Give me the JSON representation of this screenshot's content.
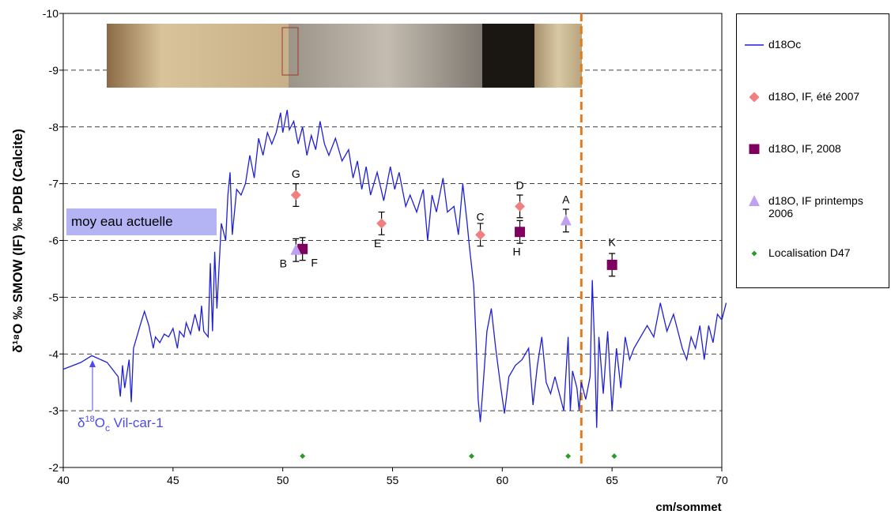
{
  "chart_data": {
    "type": "line",
    "x_label": "cm/sommet",
    "y_label": "δ¹⁸O ‰ SMOW  (IF) ‰ PDB  (Calcite)",
    "xlim": [
      40,
      70
    ],
    "xticks": [
      40,
      45,
      50,
      55,
      60,
      65,
      70
    ],
    "ylim": [
      -2,
      -10
    ],
    "yticks": [
      -10,
      -9,
      -8,
      -7,
      -6,
      -5,
      -4,
      -3,
      -2
    ],
    "grid": true,
    "legend": "right",
    "annotation_box": "moy eau actuelle",
    "annotation_arrow": [
      "δ",
      "18",
      "O",
      "c",
      " Vil-car-1"
    ],
    "reference_line": {
      "x": 63.6,
      "color": "#e07b16"
    },
    "series": [
      {
        "name": "d18Oc",
        "type": "line",
        "color": "#1f1fd6",
        "x": [
          40,
          40.8,
          41.3,
          42.0,
          42.5,
          42.6,
          42.7,
          42.8,
          43.0,
          43.1,
          43.2,
          43.5,
          43.7,
          43.9,
          44.1,
          44.2,
          44.4,
          44.6,
          44.8,
          45.0,
          45.2,
          45.3,
          45.5,
          45.6,
          45.8,
          46.0,
          46.2,
          46.3,
          46.4,
          46.6,
          46.7,
          46.8,
          46.9,
          47.0,
          47.2,
          47.4,
          47.5,
          47.6,
          47.7,
          47.9,
          48.1,
          48.3,
          48.5,
          48.7,
          48.9,
          49.1,
          49.3,
          49.5,
          49.7,
          49.9,
          50.0,
          50.2,
          50.3,
          50.5,
          50.7,
          50.9,
          51.1,
          51.3,
          51.5,
          51.7,
          51.9,
          52.1,
          52.4,
          52.7,
          53.0,
          53.2,
          53.4,
          53.6,
          53.8,
          54.0,
          54.3,
          54.6,
          54.9,
          55.1,
          55.3,
          55.6,
          55.8,
          56.1,
          56.4,
          56.6,
          56.8,
          57.0,
          57.3,
          57.5,
          57.8,
          58.0,
          58.2,
          58.4,
          58.5,
          58.7,
          58.8,
          58.9,
          59.0,
          59.1,
          59.3,
          59.5,
          59.7,
          59.9,
          60.1,
          60.3,
          60.6,
          60.9,
          61.2,
          61.4,
          61.6,
          61.8,
          62.0,
          62.2,
          62.4,
          62.6,
          62.8,
          63.0,
          63.1,
          63.2,
          63.4,
          63.5,
          63.6,
          63.8,
          64.0,
          64.1,
          64.2,
          64.3,
          64.4,
          64.6,
          64.8,
          65.0,
          65.2,
          65.4,
          65.6,
          65.8,
          66.0,
          66.3,
          66.6,
          66.9,
          67.2,
          67.5,
          67.8,
          68.0,
          68.2,
          68.4,
          68.6,
          68.8,
          69.0,
          69.2,
          69.4,
          69.6,
          69.8,
          70.0,
          70.2
        ],
        "values": [
          -3.73,
          -3.85,
          -3.97,
          -3.85,
          -3.6,
          -3.25,
          -3.8,
          -3.4,
          -3.9,
          -3.15,
          -4.1,
          -4.5,
          -4.75,
          -4.5,
          -4.1,
          -4.3,
          -4.2,
          -4.35,
          -4.3,
          -4.45,
          -4.1,
          -4.4,
          -4.3,
          -4.55,
          -4.35,
          -4.7,
          -4.4,
          -4.85,
          -4.4,
          -4.3,
          -5.6,
          -4.4,
          -5.8,
          -4.8,
          -6.3,
          -6.0,
          -6.8,
          -7.2,
          -6.1,
          -6.9,
          -6.8,
          -7.0,
          -7.5,
          -7.1,
          -7.8,
          -7.5,
          -7.9,
          -7.7,
          -7.9,
          -8.25,
          -7.9,
          -8.3,
          -7.95,
          -8.1,
          -7.7,
          -8.0,
          -7.5,
          -7.85,
          -7.6,
          -8.1,
          -7.7,
          -7.5,
          -7.8,
          -7.4,
          -7.6,
          -7.1,
          -7.4,
          -6.9,
          -7.3,
          -6.8,
          -7.2,
          -6.7,
          -7.3,
          -6.9,
          -7.2,
          -6.6,
          -6.8,
          -6.5,
          -6.9,
          -6.0,
          -6.8,
          -6.5,
          -7.1,
          -6.5,
          -6.6,
          -6.1,
          -7.0,
          -6.3,
          -5.9,
          -5.2,
          -4.3,
          -3.2,
          -2.8,
          -3.3,
          -4.4,
          -4.8,
          -4.1,
          -3.5,
          -2.95,
          -3.6,
          -3.8,
          -3.9,
          -4.1,
          -3.1,
          -3.8,
          -4.3,
          -3.5,
          -3.3,
          -3.6,
          -3.3,
          -3.0,
          -4.3,
          -3.0,
          -3.7,
          -3.4,
          -3.0,
          -3.5,
          -3.2,
          -3.6,
          -5.3,
          -4.2,
          -2.7,
          -4.3,
          -3.3,
          -4.4,
          -3.0,
          -4.1,
          -3.4,
          -4.3,
          -3.9,
          -4.1,
          -4.3,
          -4.5,
          -4.3,
          -4.9,
          -4.4,
          -4.7,
          -4.4,
          -4.1,
          -3.9,
          -4.3,
          -4.1,
          -4.5,
          -3.9,
          -4.5,
          -4.2,
          -4.7,
          -4.6,
          -4.9
        ]
      },
      {
        "name": "d18O, IF, été 2007",
        "type": "scatter",
        "marker": "diamond",
        "color": "#f08080",
        "x": [
          50.6,
          54.5,
          59.0,
          60.8
        ],
        "values": [
          -6.8,
          -6.3,
          -6.1,
          -6.6
        ],
        "errors": [
          0.2,
          0.2,
          0.2,
          0.2
        ],
        "labels": [
          "G",
          "E",
          "C",
          "D"
        ]
      },
      {
        "name": "d18O, IF, 2008",
        "type": "scatter",
        "marker": "square",
        "color": "#800060",
        "x": [
          50.9,
          60.8,
          65.0
        ],
        "values": [
          -5.85,
          -6.15,
          -5.57
        ],
        "errors": [
          0.2,
          0.2,
          0.2
        ],
        "labels": [
          "F",
          "H",
          "K"
        ]
      },
      {
        "name": "d18O, IF printemps 2006",
        "type": "scatter",
        "marker": "triangle",
        "color": "#c0a0f0",
        "x": [
          50.6,
          62.9
        ],
        "values": [
          -5.83,
          -6.35
        ],
        "errors": [
          0.2,
          0.2
        ],
        "labels": [
          "B",
          "A"
        ]
      },
      {
        "name": "Localisation D47",
        "type": "scatter",
        "marker": "smalldiamond",
        "color": "#2a9a2a",
        "x": [
          50.9,
          58.6,
          63.0,
          65.1
        ],
        "values": [
          -2.2,
          -2.2,
          -2.2,
          -2.2
        ]
      }
    ]
  }
}
